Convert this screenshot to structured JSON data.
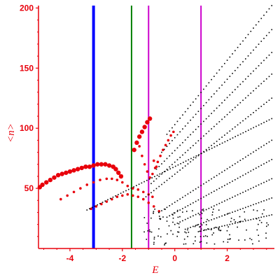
{
  "chart_data": {
    "type": "scatter",
    "title": "",
    "xlabel": "E",
    "ylabel": "<n>",
    "xlim": [
      -5.2,
      3.8
    ],
    "ylim": [
      0,
      202
    ],
    "grid": false,
    "axis_color": "#e8000b",
    "x_ticks": [
      -4,
      -2,
      0,
      2
    ],
    "x_tick_labels": [
      "-4",
      "-2",
      "0",
      "2"
    ],
    "y_ticks": [
      50,
      100,
      150,
      200
    ],
    "y_tick_labels": [
      "50",
      "100",
      "150",
      "200"
    ],
    "vertical_lines": [
      {
        "x": -3.1,
        "color": "#0000ff",
        "width": "thick"
      },
      {
        "x": -1.65,
        "color": "#008000",
        "width": "thin"
      },
      {
        "x": -1.0,
        "color": "#cc00cc",
        "width": "thin"
      },
      {
        "x": 1.0,
        "color": "#cc00cc",
        "width": "thin"
      }
    ],
    "series": [
      {
        "color": "#e8000b",
        "marker": "large",
        "points": [
          [
            -5.15,
            51
          ],
          [
            -5.05,
            53
          ],
          [
            -4.9,
            55
          ],
          [
            -4.75,
            57
          ],
          [
            -4.6,
            59
          ],
          [
            -4.45,
            61
          ],
          [
            -4.3,
            62
          ],
          [
            -4.15,
            63
          ],
          [
            -4.0,
            64
          ],
          [
            -3.85,
            65
          ],
          [
            -3.7,
            66
          ],
          [
            -3.55,
            67
          ],
          [
            -3.4,
            68
          ],
          [
            -3.25,
            68
          ],
          [
            -3.1,
            69
          ],
          [
            -2.95,
            70
          ],
          [
            -2.8,
            70
          ],
          [
            -2.65,
            70
          ],
          [
            -2.5,
            69
          ],
          [
            -2.35,
            68
          ],
          [
            -2.25,
            66
          ],
          [
            -2.15,
            63
          ],
          [
            -2.05,
            60
          ],
          [
            -1.55,
            82
          ],
          [
            -1.45,
            88
          ],
          [
            -1.35,
            93
          ],
          [
            -1.25,
            97
          ],
          [
            -1.15,
            101
          ],
          [
            -1.05,
            105
          ],
          [
            -0.95,
            108
          ]
        ]
      },
      {
        "color": "#e8000b",
        "marker": "small",
        "points": [
          [
            -4.35,
            41
          ],
          [
            -4.1,
            44
          ],
          [
            -3.85,
            47
          ],
          [
            -3.6,
            50
          ],
          [
            -3.35,
            53
          ],
          [
            -3.1,
            55
          ],
          [
            -2.85,
            57
          ],
          [
            -2.6,
            58
          ],
          [
            -2.4,
            58
          ],
          [
            -2.2,
            57
          ],
          [
            -2.0,
            55
          ],
          [
            -1.8,
            52
          ],
          [
            -1.6,
            50
          ],
          [
            -1.4,
            49
          ],
          [
            -1.2,
            47
          ],
          [
            -1.0,
            45
          ],
          [
            -0.85,
            43
          ],
          [
            -3.2,
            33
          ],
          [
            -3.0,
            35
          ],
          [
            -2.8,
            37
          ],
          [
            -2.6,
            39
          ],
          [
            -2.4,
            41
          ],
          [
            -2.2,
            43
          ],
          [
            -2.0,
            44
          ],
          [
            -1.8,
            45
          ],
          [
            -1.6,
            44
          ],
          [
            -1.4,
            43
          ],
          [
            -1.2,
            41
          ],
          [
            -1.0,
            38
          ],
          [
            -0.8,
            35
          ],
          [
            -0.6,
            31
          ],
          [
            -1.35,
            85
          ],
          [
            -1.25,
            77
          ],
          [
            -1.15,
            70
          ],
          [
            -1.05,
            64
          ],
          [
            -0.95,
            59
          ],
          [
            -0.85,
            62
          ],
          [
            -0.75,
            67
          ],
          [
            -0.65,
            72
          ],
          [
            -0.55,
            77
          ],
          [
            -0.45,
            82
          ],
          [
            -0.35,
            86
          ],
          [
            -0.25,
            90
          ],
          [
            -0.15,
            94
          ],
          [
            -0.05,
            97
          ],
          [
            -0.7,
            68
          ],
          [
            -0.8,
            73
          ]
        ]
      },
      {
        "color": "#000000",
        "marker": "dot",
        "bands": [
          {
            "from": [
              -0.3,
              95
            ],
            "to": [
              3.7,
              202
            ]
          },
          {
            "from": [
              -0.5,
              80
            ],
            "to": [
              3.7,
              182
            ]
          },
          {
            "from": [
              -0.7,
              66
            ],
            "to": [
              3.7,
              163
            ]
          },
          {
            "from": [
              -0.9,
              54
            ],
            "to": [
              3.7,
              145
            ]
          },
          {
            "from": [
              -1.1,
              43
            ],
            "to": [
              3.7,
              125
            ]
          },
          {
            "from": [
              -3.35,
              32
            ],
            "to": [
              3.7,
              108
            ]
          },
          {
            "from": [
              -0.6,
              30
            ],
            "to": [
              3.7,
              90
            ]
          },
          {
            "from": [
              -0.3,
              26
            ],
            "to": [
              3.7,
              74
            ]
          },
          {
            "from": [
              0.0,
              20
            ],
            "to": [
              3.7,
              58
            ]
          },
          {
            "from": [
              0.4,
              16
            ],
            "to": [
              3.7,
              42
            ]
          },
          {
            "from": [
              0.9,
              14
            ],
            "to": [
              3.7,
              28
            ]
          }
        ]
      }
    ]
  }
}
